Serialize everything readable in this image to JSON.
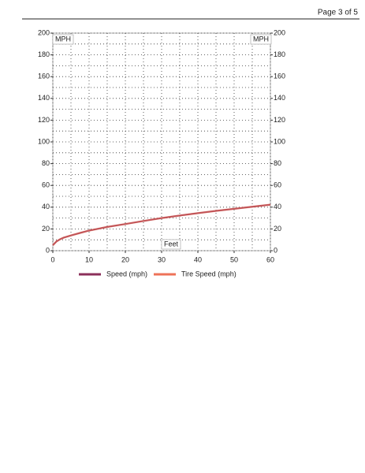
{
  "header": {
    "page": "Page 3 of 5"
  },
  "chart_data": {
    "type": "line",
    "x_label": "Feet",
    "y_label": "MPH",
    "y2_label": "MPH",
    "x": [
      0,
      1,
      2,
      3,
      5,
      7.5,
      10,
      15,
      20,
      25,
      30,
      35,
      40,
      45,
      50,
      55,
      60
    ],
    "series": [
      {
        "name": "Speed (mph)",
        "color": "#8b2f5a",
        "values": [
          5,
          8.5,
          10.5,
          12,
          14,
          16.3,
          18.5,
          21.8,
          24.5,
          27.3,
          30,
          32.3,
          34.5,
          36.6,
          38.5,
          40.4,
          42.3
        ]
      },
      {
        "name": "Tire Speed (mph)",
        "color": "#ee7258",
        "values": [
          5,
          8.5,
          10.5,
          12,
          14,
          16.3,
          18.5,
          21.8,
          24.5,
          27.3,
          30,
          32.3,
          34.5,
          36.6,
          38.5,
          40.4,
          42.3
        ]
      }
    ],
    "xlim": [
      0,
      60
    ],
    "xticks": [
      0,
      10,
      20,
      30,
      40,
      50,
      60
    ],
    "ylim": [
      0,
      200
    ],
    "yticks": [
      0,
      20,
      40,
      60,
      80,
      100,
      120,
      140,
      160,
      180,
      200
    ],
    "y2lim": [
      0,
      200
    ],
    "y2ticks": [
      0,
      20,
      40,
      60,
      80,
      100,
      120,
      140,
      160,
      180,
      200
    ],
    "grid": true,
    "legend": "bottom"
  }
}
